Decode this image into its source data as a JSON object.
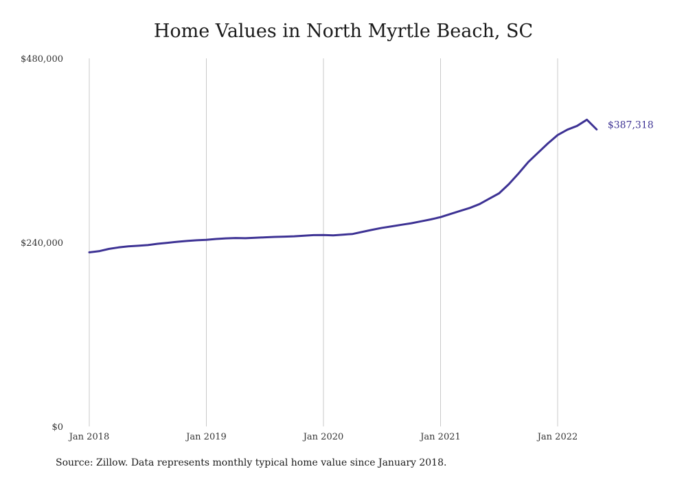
{
  "title": "Home Values in North Myrtle Beach, SC",
  "source": "Source: Zillow. Data represents monthly typical home value since January 2018.",
  "colors": {
    "line": "#3d3294",
    "grid": "#c8c8c8"
  },
  "chart_data": {
    "type": "line",
    "title": "Home Values in North Myrtle Beach, SC",
    "xlabel": "",
    "ylabel": "",
    "x_ticks": [
      "Jan 2018",
      "Jan 2019",
      "Jan 2020",
      "Jan 2021",
      "Jan 2022"
    ],
    "y_ticks": [
      "$0",
      "$240,000",
      "$480,000"
    ],
    "ylim": [
      0,
      480000
    ],
    "grid": {
      "vertical": true,
      "horizontal": false
    },
    "end_label": "$387,318",
    "series": [
      {
        "x": [
          "2018-01",
          "2018-02",
          "2018-03",
          "2018-04",
          "2018-05",
          "2018-06",
          "2018-07",
          "2018-08",
          "2018-09",
          "2018-10",
          "2018-11",
          "2018-12",
          "2019-01",
          "2019-02",
          "2019-03",
          "2019-04",
          "2019-05",
          "2019-06",
          "2019-07",
          "2019-08",
          "2019-09",
          "2019-10",
          "2019-11",
          "2019-12",
          "2020-01",
          "2020-02",
          "2020-03",
          "2020-04",
          "2020-05",
          "2020-06",
          "2020-07",
          "2020-08",
          "2020-09",
          "2020-10",
          "2020-11",
          "2020-12",
          "2021-01",
          "2021-02",
          "2021-03",
          "2021-04",
          "2021-05",
          "2021-06",
          "2021-07",
          "2021-08",
          "2021-09",
          "2021-10",
          "2021-11",
          "2021-12",
          "2022-01",
          "2022-02",
          "2022-03",
          "2022-04",
          "2022-05"
        ],
        "values": [
          227000,
          228500,
          231500,
          233500,
          234800,
          235600,
          236500,
          238200,
          239500,
          240800,
          241900,
          242800,
          243300,
          244500,
          245300,
          245700,
          245500,
          246000,
          246600,
          247200,
          247500,
          248000,
          248800,
          249500,
          249700,
          249200,
          250000,
          251000,
          253800,
          256500,
          259000,
          261000,
          263000,
          265000,
          267500,
          270000,
          273000,
          277000,
          281000,
          285000,
          290000,
          297000,
          304000,
          316000,
          330000,
          345000,
          357000,
          369000,
          380000,
          387000,
          392000,
          400000,
          387318
        ]
      }
    ]
  }
}
